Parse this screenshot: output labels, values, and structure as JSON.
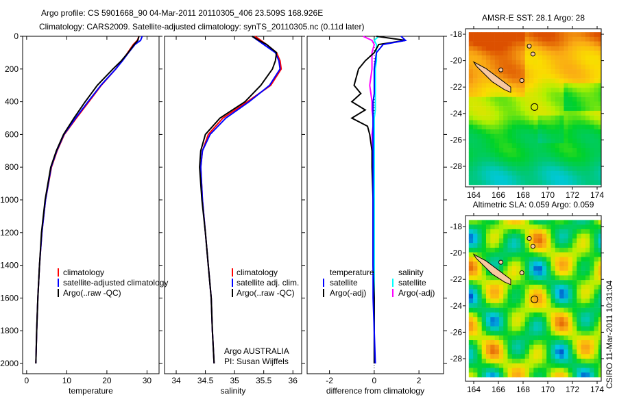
{
  "title_line1": "Argo profile: CS 5901668_90 04-Mar-2011 20110305_406 23.509S 168.926E",
  "title_line2": "Climatology: CARS2009. Satellite-adjusted climatology: synTS_20110305.nc (0.11d later)",
  "side_label": "CSIRO 11-Mar-2011 10:31:04",
  "colors": {
    "climatology": "#ff0000",
    "satellite": "#0000ff",
    "argo": "#000000",
    "sal_satellite": "#00ffff",
    "sal_argo": "#ff00ff"
  },
  "chart_data": [
    {
      "type": "line",
      "xlabel": "temperature",
      "ylabel": "",
      "xlim": [
        -1,
        33
      ],
      "ylim": [
        2050,
        0
      ],
      "xticks": [
        "0",
        "10",
        "20",
        "30"
      ],
      "yticks": [
        "0",
        "200",
        "400",
        "600",
        "800",
        "1000",
        "1200",
        "1400",
        "1600",
        "1800",
        "2000"
      ],
      "legend": [
        "climatology",
        "satellite-adjusted climatology",
        "Argo(..raw -QC)"
      ],
      "depth": [
        0,
        25,
        50,
        100,
        150,
        200,
        300,
        400,
        500,
        600,
        700,
        800,
        1000,
        1200,
        1400,
        1600,
        1800,
        2000
      ],
      "series": [
        {
          "name": "climatology",
          "values": [
            28.0,
            27.6,
            26.6,
            25.2,
            23.8,
            22.2,
            18.6,
            15.5,
            12.4,
            9.4,
            7.6,
            6.2,
            4.7,
            3.8,
            3.2,
            2.8,
            2.5,
            2.3
          ]
        },
        {
          "name": "satellite-adjusted climatology",
          "values": [
            28.8,
            28.4,
            27.0,
            25.4,
            23.9,
            22.2,
            18.5,
            15.3,
            12.2,
            9.3,
            7.5,
            6.1,
            4.7,
            3.8,
            3.2,
            2.8,
            2.5,
            2.3
          ]
        },
        {
          "name": "Argo(..raw -QC)",
          "values": [
            28.0,
            27.7,
            26.8,
            25.3,
            23.6,
            21.5,
            17.6,
            14.6,
            11.8,
            9.2,
            7.4,
            6.0,
            4.6,
            3.7,
            3.2,
            2.8,
            2.5,
            2.3
          ]
        }
      ]
    },
    {
      "type": "line",
      "xlabel": "salinity",
      "xlim": [
        33.8,
        36.15
      ],
      "ylim": [
        2050,
        0
      ],
      "xticks": [
        "34",
        "34.5",
        "35",
        "35.5",
        "36"
      ],
      "legend": [
        "climatology",
        "satellite adj. clim.",
        "Argo(..raw -QC)"
      ],
      "annotation": [
        "Argo AUSTRALIA",
        "PI: Susan Wijffels"
      ],
      "depth": [
        0,
        25,
        50,
        100,
        150,
        200,
        300,
        400,
        500,
        600,
        700,
        800,
        1000,
        1200,
        1400,
        1600,
        1800,
        2000
      ],
      "series": [
        {
          "name": "climatology",
          "values": [
            35.35,
            35.45,
            35.55,
            35.72,
            35.78,
            35.8,
            35.62,
            35.22,
            34.8,
            34.55,
            34.45,
            34.42,
            34.45,
            34.5,
            34.55,
            34.6,
            34.62,
            34.65
          ]
        },
        {
          "name": "satellite adj. clim.",
          "values": [
            35.3,
            35.4,
            35.5,
            35.7,
            35.76,
            35.78,
            35.6,
            35.25,
            34.85,
            34.58,
            34.45,
            34.42,
            34.45,
            34.5,
            34.55,
            34.6,
            34.62,
            34.65
          ]
        },
        {
          "name": "Argo(..raw -QC)",
          "values": [
            35.3,
            35.42,
            35.55,
            35.72,
            35.7,
            35.65,
            35.45,
            35.18,
            34.75,
            34.5,
            34.42,
            34.4,
            34.44,
            34.5,
            34.55,
            34.6,
            34.62,
            34.65
          ]
        }
      ]
    },
    {
      "type": "line",
      "xlabel": "difference from climatology",
      "xlim": [
        -3,
        3.1
      ],
      "ylim": [
        2050,
        0
      ],
      "xticks": [
        "-2",
        "0",
        "2"
      ],
      "legend_temperature": [
        "temperature",
        "satellite",
        "Argo(-adj)"
      ],
      "legend_salinity": [
        "salinity",
        "satellite",
        "Argo(-adj)"
      ],
      "depth": [
        0,
        25,
        50,
        100,
        150,
        200,
        300,
        350,
        400,
        450,
        500,
        550,
        600,
        700,
        800,
        1000,
        1200,
        1400,
        1600,
        1800,
        2000
      ],
      "series": [
        {
          "name": "temperature satellite",
          "values": [
            1.2,
            1.4,
            0.4,
            0.1,
            0.05,
            0.0,
            0.0,
            0.0,
            -0.05,
            -0.05,
            -0.05,
            -0.05,
            -0.05,
            -0.05,
            -0.05,
            -0.05,
            -0.05,
            -0.05,
            -0.05,
            0.0,
            0.05
          ]
        },
        {
          "name": "temperature Argo(-adj)",
          "values": [
            0.1,
            1.4,
            0.2,
            0.0,
            -0.4,
            -0.7,
            -0.9,
            -0.6,
            -1.0,
            -0.4,
            -1.0,
            -0.3,
            -0.2,
            -0.1,
            -0.1,
            -0.05,
            -0.05,
            -0.05,
            0.0,
            0.0,
            0.0
          ]
        },
        {
          "name": "salinity satellite",
          "values": [
            0.2,
            0.0,
            0.1,
            0.1,
            0.1,
            0.05,
            0.05,
            0.05,
            0.05,
            0.05,
            0.0,
            0.0,
            0.0,
            0.0,
            0.0,
            0.0,
            0.0,
            0.0,
            0.0,
            0.0,
            0.0
          ]
        },
        {
          "name": "salinity Argo(-adj)",
          "values": [
            -0.5,
            -0.1,
            0.0,
            -0.1,
            -0.1,
            -0.1,
            -0.2,
            -0.15,
            -0.1,
            -0.1,
            -0.05,
            -0.05,
            -0.1,
            -0.05,
            -0.05,
            -0.05,
            -0.05,
            -0.05,
            0.0,
            0.0,
            0.0
          ]
        }
      ]
    },
    {
      "type": "heatmap",
      "title": "AMSR-E SST: 28.1 Argo: 28",
      "xticks": [
        "164",
        "166",
        "168",
        "170",
        "172",
        "174"
      ],
      "yticks": [
        "-18",
        "-20",
        "-22",
        "-24",
        "-26",
        "-28"
      ],
      "xlim": [
        163.3,
        174.5
      ],
      "ylim": [
        -29.6,
        -17.6
      ],
      "marker": [
        168.926,
        -23.509
      ]
    },
    {
      "type": "heatmap",
      "title": "Altimetric SLA: 0.059 Argo: 0.059",
      "xticks": [
        "164",
        "166",
        "168",
        "170",
        "172",
        "174"
      ],
      "yticks": [
        "-18",
        "-20",
        "-22",
        "-24",
        "-26",
        "-28"
      ],
      "xlim": [
        163.3,
        174.5
      ],
      "ylim": [
        -29.6,
        -17.6
      ],
      "marker": [
        168.926,
        -23.509
      ]
    }
  ]
}
